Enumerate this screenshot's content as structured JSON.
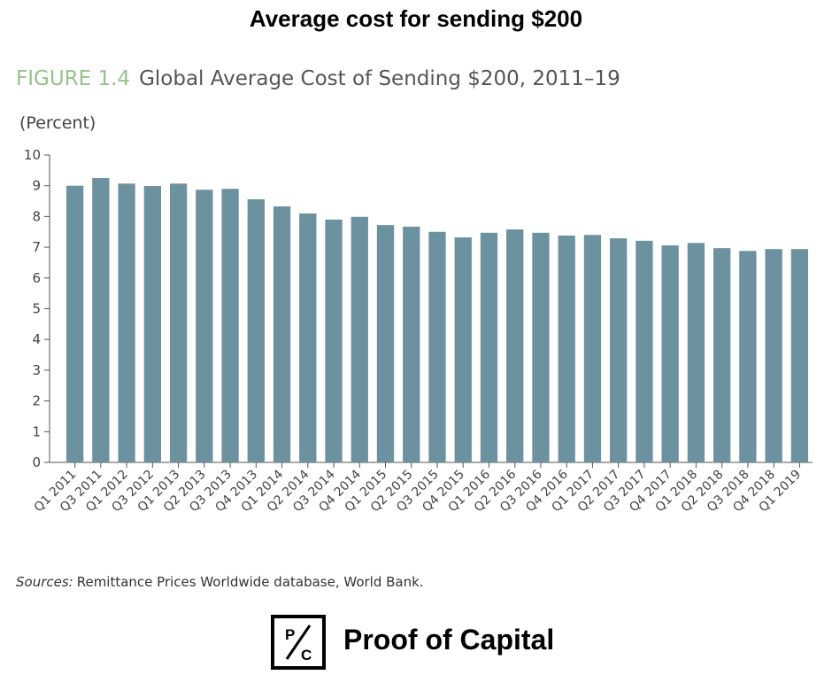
{
  "header": {
    "title": "Average cost for sending $200"
  },
  "figure": {
    "label": "FIGURE 1.4",
    "title": "Global Average Cost of Sending $200, 2011–19",
    "unit": "(Percent)"
  },
  "source": {
    "prefix": "Sources:",
    "text": "Remittance Prices Worldwide database, World Bank."
  },
  "logo": {
    "mark_top": "P",
    "mark_bottom": "C",
    "name": "Proof of Capital"
  },
  "colors": {
    "bar": "#6c929f",
    "figure_label": "#97c28a",
    "axis": "#555555"
  },
  "chart_data": {
    "type": "bar",
    "title": "Global Average Cost of Sending $200, 2011–19",
    "ylabel": "(Percent)",
    "xlabel": "",
    "ylim": [
      0,
      10
    ],
    "yticks": [
      0,
      1,
      2,
      3,
      4,
      5,
      6,
      7,
      8,
      9,
      10
    ],
    "grid": false,
    "categories": [
      "Q1 2011",
      "Q3 2011",
      "Q1 2012",
      "Q3 2012",
      "Q1 2013",
      "Q2 2013",
      "Q3 2013",
      "Q4 2013",
      "Q1 2014",
      "Q2 2014",
      "Q3 2014",
      "Q4 2014",
      "Q1 2015",
      "Q2 2015",
      "Q3 2015",
      "Q4 2015",
      "Q1 2016",
      "Q2 2016",
      "Q3 2016",
      "Q4 2016",
      "Q1 2017",
      "Q2 2017",
      "Q3 2017",
      "Q4 2017",
      "Q1 2018",
      "Q2 2018",
      "Q3 2018",
      "Q4 2018",
      "Q1 2019"
    ],
    "values": [
      9.0,
      9.25,
      9.07,
      8.99,
      9.07,
      8.87,
      8.9,
      8.56,
      8.33,
      8.1,
      7.9,
      7.99,
      7.72,
      7.67,
      7.5,
      7.32,
      7.47,
      7.58,
      7.47,
      7.38,
      7.4,
      7.29,
      7.21,
      7.06,
      7.14,
      6.97,
      6.88,
      6.94,
      6.94
    ]
  }
}
